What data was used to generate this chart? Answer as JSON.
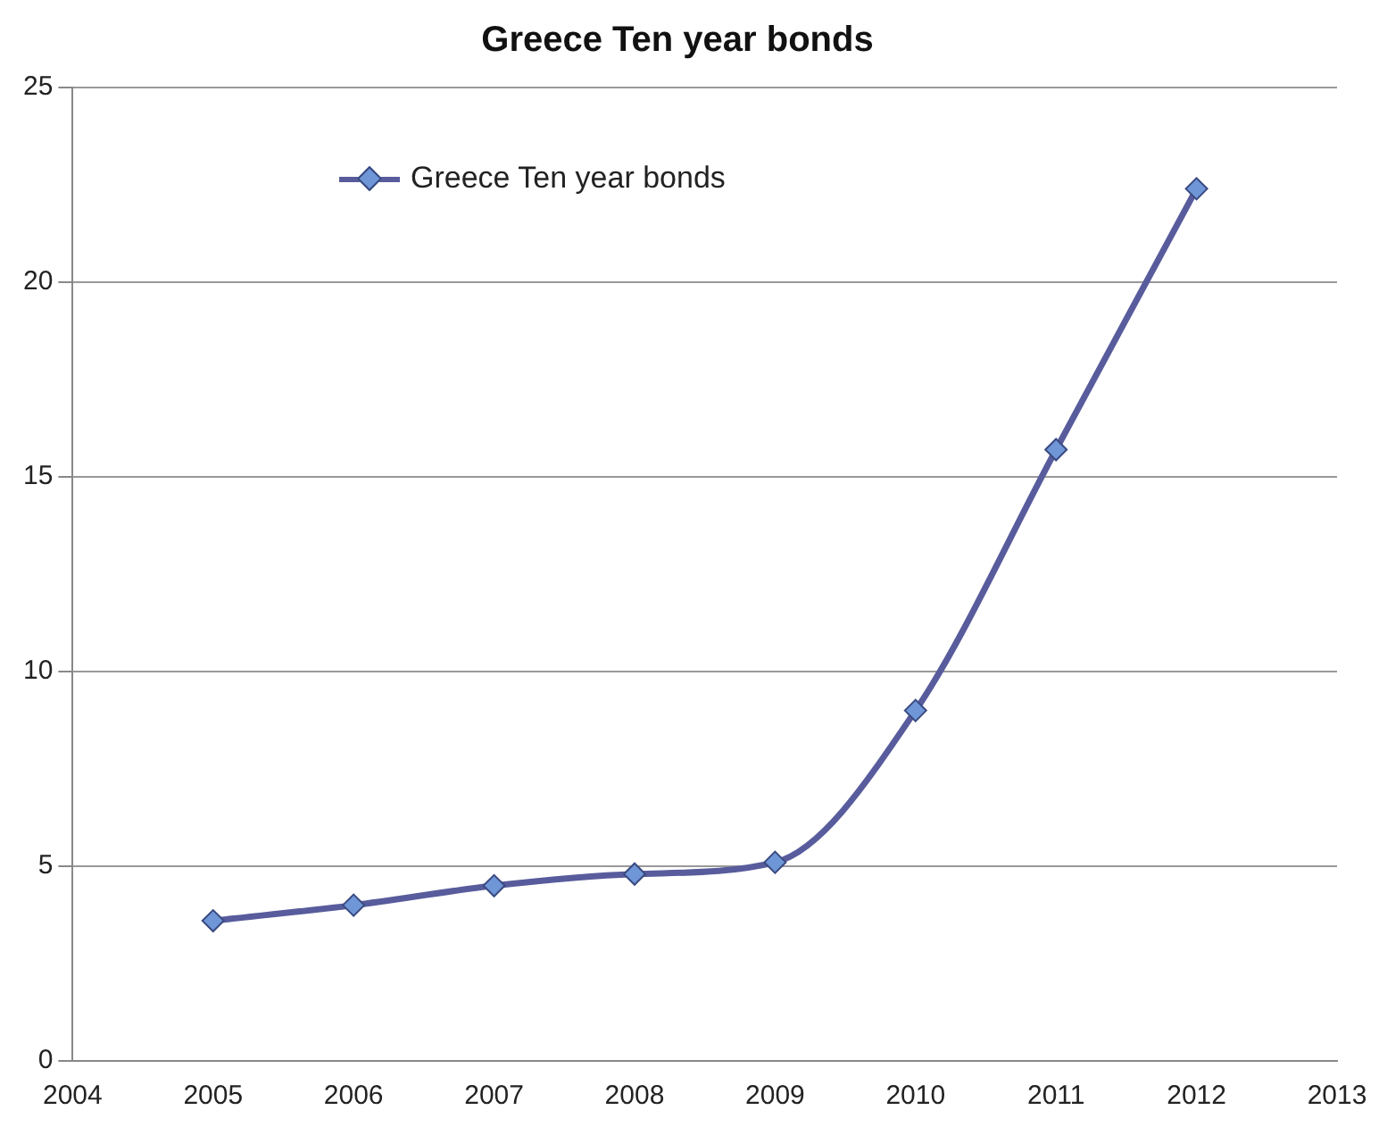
{
  "chart_data": {
    "type": "line",
    "title": "Greece Ten year bonds",
    "x": [
      2005,
      2006,
      2007,
      2008,
      2009,
      2010,
      2011,
      2012
    ],
    "series": [
      {
        "name": "Greece Ten year bonds",
        "color": "#585c9c",
        "values": [
          3.6,
          4.0,
          4.5,
          4.8,
          5.1,
          9.0,
          15.7,
          22.4
        ]
      }
    ],
    "xlim": [
      2004,
      2013
    ],
    "xticks": [
      2004,
      2005,
      2006,
      2007,
      2008,
      2009,
      2010,
      2011,
      2012,
      2013
    ],
    "ylim": [
      0,
      25
    ],
    "yticks": [
      0,
      5,
      10,
      15,
      20,
      25
    ],
    "grid": "y",
    "legend": "top left",
    "marker": "diamond",
    "line_style": "solid"
  }
}
